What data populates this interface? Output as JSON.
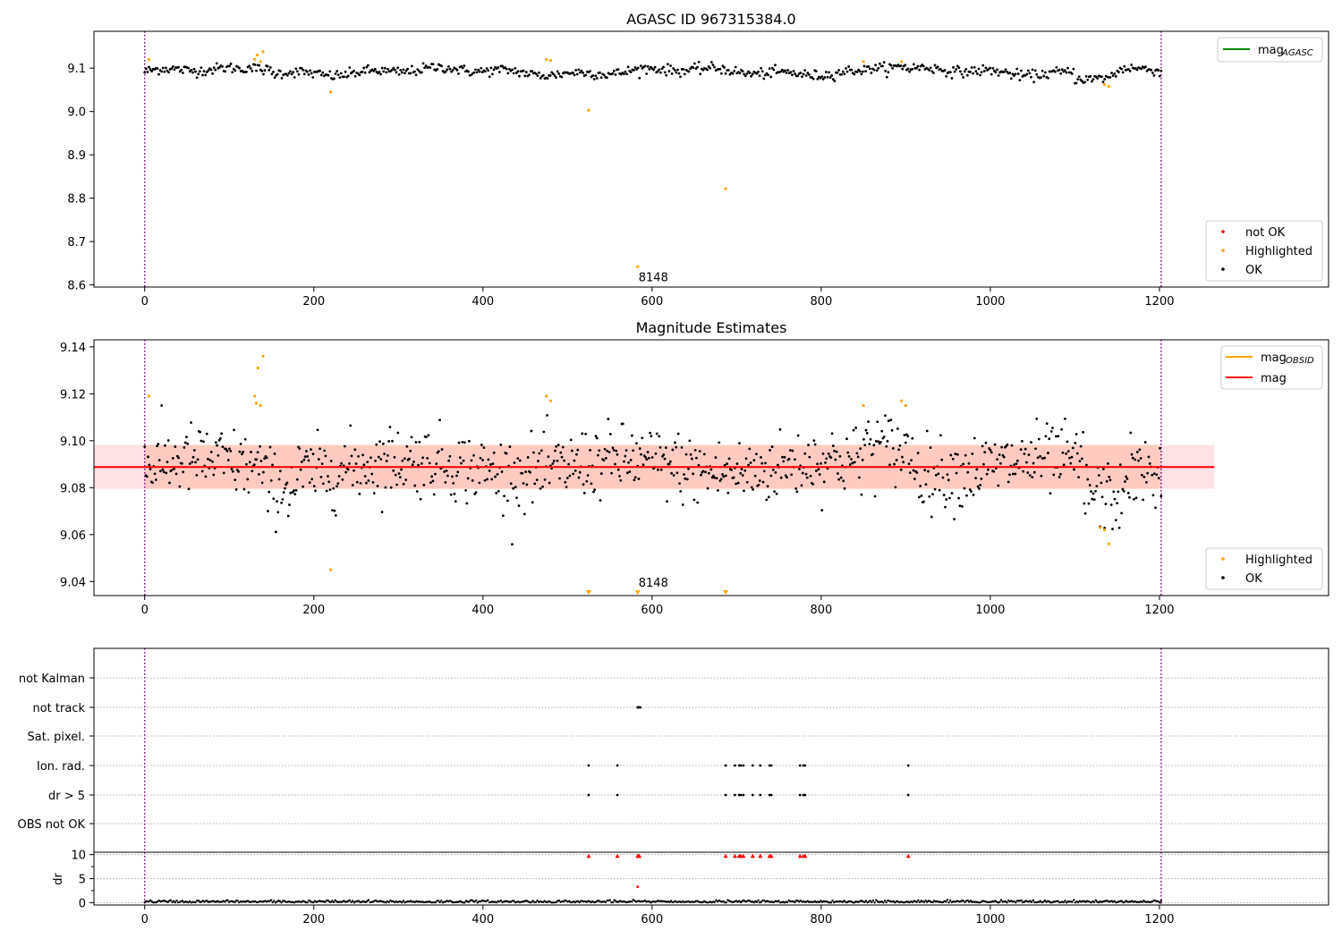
{
  "chart_data": [
    {
      "type": "scatter",
      "title": "AGASC ID 967315384.0",
      "xlim": [
        -60,
        1400
      ],
      "ylim": [
        8.595,
        9.185
      ],
      "xticks": [
        "0",
        "200",
        "400",
        "600",
        "800",
        "1000",
        "1200"
      ],
      "yticks": [
        "8.6",
        "8.7",
        "8.8",
        "8.9",
        "9.0",
        "9.1"
      ],
      "xtick_values": [
        0,
        200,
        400,
        600,
        800,
        1000,
        1200
      ],
      "ytick_values": [
        8.6,
        8.7,
        8.8,
        8.9,
        9.0,
        9.1
      ],
      "vlines": [
        0,
        1202
      ],
      "legend_lines": [
        {
          "label": "mag",
          "sub": "AGASC",
          "color": "#008000"
        }
      ],
      "legend_points": [
        {
          "label": "not OK",
          "color": "#ff0000"
        },
        {
          "label": "Highlighted",
          "color": "#ffa500"
        },
        {
          "label": "OK",
          "color": "#000000"
        }
      ],
      "annotation": {
        "text": "8148",
        "x": 583,
        "y": 8.61
      },
      "ok_series": {
        "start": 0,
        "end": 1202,
        "n": 720
      },
      "highlighted": [
        [
          5,
          9.12
        ],
        [
          130,
          9.12
        ],
        [
          133,
          9.13
        ],
        [
          137,
          9.115
        ],
        [
          140,
          9.138
        ],
        [
          220,
          9.045
        ],
        [
          475,
          9.12
        ],
        [
          480,
          9.118
        ],
        [
          525,
          9.003
        ],
        [
          583,
          8.642
        ],
        [
          687,
          8.822
        ],
        [
          850,
          9.115
        ],
        [
          895,
          9.115
        ],
        [
          1135,
          9.062
        ],
        [
          1140,
          9.058
        ]
      ]
    },
    {
      "type": "scatter",
      "title": "Magnitude Estimates",
      "xlim": [
        -60,
        1400
      ],
      "ylim": [
        9.034,
        9.143
      ],
      "xticks": [
        "0",
        "200",
        "400",
        "600",
        "800",
        "1000",
        "1200"
      ],
      "yticks": [
        "9.04",
        "9.06",
        "9.08",
        "9.10",
        "9.12",
        "9.14"
      ],
      "xtick_values": [
        0,
        200,
        400,
        600,
        800,
        1000,
        1200
      ],
      "ytick_values": [
        9.04,
        9.06,
        9.08,
        9.1,
        9.12,
        9.14
      ],
      "vlines": [
        0,
        1202
      ],
      "mag_line": {
        "value": 9.0888,
        "color": "#ff0000"
      },
      "mag_band": {
        "low": 9.0795,
        "high": 9.0982,
        "x_end": 1265
      },
      "legend_lines": [
        {
          "label": "mag",
          "sub": "OBSID",
          "color": "#ffa500"
        },
        {
          "label": "mag",
          "sub": "",
          "color": "#ff0000"
        }
      ],
      "legend_points": [
        {
          "label": "Highlighted",
          "color": "#ffa500"
        },
        {
          "label": "OK",
          "color": "#000000"
        }
      ],
      "annotation": {
        "text": "8148",
        "x": 583,
        "y": 9.037
      },
      "ok_series": {
        "start": 0,
        "end": 1202,
        "n": 900
      },
      "highlighted": [
        [
          5,
          9.119
        ],
        [
          130,
          9.119
        ],
        [
          132,
          9.116
        ],
        [
          134,
          9.131
        ],
        [
          137,
          9.115
        ],
        [
          140,
          9.136
        ],
        [
          220,
          9.045
        ],
        [
          475,
          9.119
        ],
        [
          480,
          9.117
        ],
        [
          850,
          9.115
        ],
        [
          895,
          9.117
        ],
        [
          900,
          9.115
        ],
        [
          1130,
          9.063
        ],
        [
          1135,
          9.062
        ],
        [
          1140,
          9.056
        ]
      ],
      "clipped_low": [
        525,
        583,
        687
      ]
    },
    {
      "type": "scatter",
      "title": "",
      "xlim": [
        -60,
        1400
      ],
      "categories": [
        "not Kalman",
        "not track",
        "Sat. pixel.",
        "Ion. rad.",
        "dr > 5",
        "OBS not OK"
      ],
      "vlines": [
        0,
        1202
      ],
      "flags": {
        "not track": [
          583,
          584,
          585,
          586
        ],
        "Ion. rad.": [
          525,
          559,
          687,
          698,
          703,
          705,
          708,
          719,
          728,
          739,
          741,
          775,
          779,
          781,
          903
        ],
        "dr > 5": [
          525,
          559,
          687,
          698,
          703,
          705,
          708,
          719,
          728,
          739,
          741,
          775,
          779,
          781,
          903
        ]
      }
    },
    {
      "type": "scatter",
      "title": "",
      "xlim": [
        -60,
        1400
      ],
      "ylim": [
        -0.5,
        10.5
      ],
      "ylabel": "dr",
      "xticks": [
        "0",
        "200",
        "400",
        "600",
        "800",
        "1000",
        "1200"
      ],
      "yticks": [
        "0",
        "5",
        "10"
      ],
      "xtick_values": [
        0,
        200,
        400,
        600,
        800,
        1000,
        1200
      ],
      "ytick_values": [
        0,
        5,
        10
      ],
      "vlines": [
        0,
        1202
      ],
      "high_dr": [
        525,
        559,
        583,
        584,
        585,
        687,
        698,
        703,
        705,
        708,
        719,
        728,
        739,
        741,
        775,
        779,
        781,
        903
      ],
      "mid_dr": [
        [
          583,
          3.3
        ]
      ],
      "low_dr_series": {
        "start": 0,
        "end": 1202,
        "n": 700
      }
    }
  ]
}
